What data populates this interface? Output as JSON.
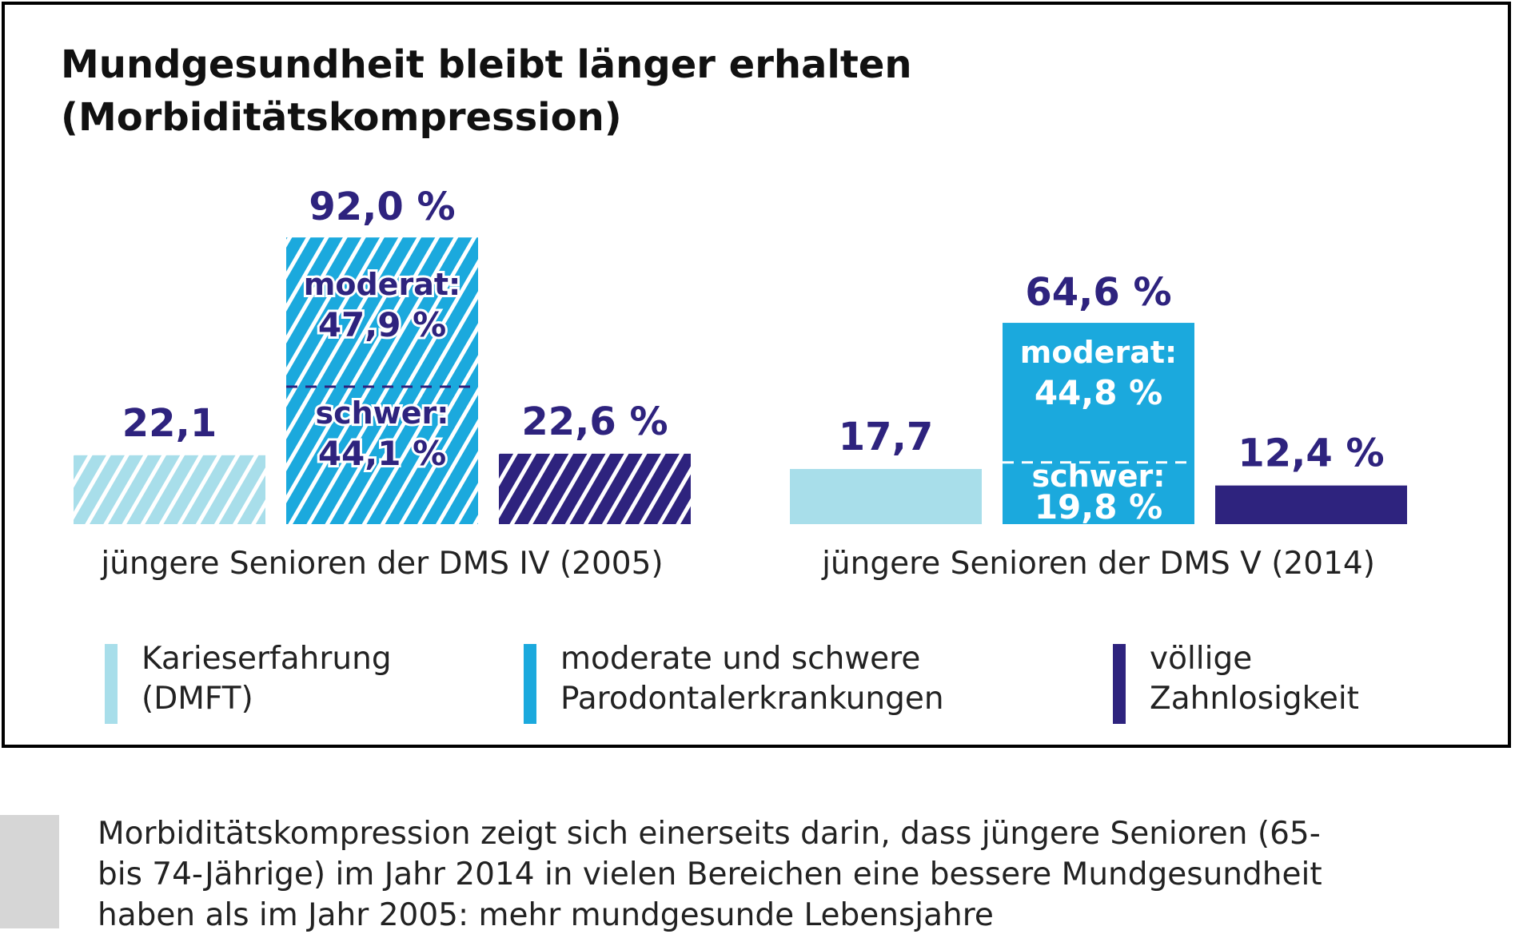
{
  "title": {
    "line1": "Mundgesundheit bleibt länger erhalten",
    "line2": "(Morbiditätskompression)"
  },
  "colors": {
    "caries": "#a8deea",
    "perio": "#1ba9dd",
    "edentulism": "#2e237e",
    "label": "#2e237e",
    "caption_block": "#d6d6d6"
  },
  "chart_data": {
    "type": "bar",
    "title": "Mundgesundheit bleibt länger erhalten (Morbiditätskompression)",
    "categories": [
      "jüngere Senioren der DMS IV (2005)",
      "jüngere Senioren der DMS V (2014)"
    ],
    "series": [
      {
        "name": "Karieserfahrung (DMFT)",
        "values": [
          22.1,
          17.7
        ],
        "labels": [
          "22,1",
          "17,7"
        ],
        "unit": "DMFT",
        "color": "#a8deea"
      },
      {
        "name": "moderate und schwere Parodontalerkrankungen",
        "values": [
          92.0,
          64.6
        ],
        "labels": [
          "92,0 %",
          "64,6 %"
        ],
        "unit": "%",
        "color": "#1ba9dd",
        "segments": {
          "schwer": {
            "prefix": "schwer:",
            "values": [
              44.1,
              19.8
            ],
            "labels": [
              "44,1 %",
              "19,8 %"
            ]
          },
          "moderat": {
            "prefix": "moderat:",
            "values": [
              47.9,
              44.8
            ],
            "labels": [
              "47,9 %",
              "44,8 %"
            ]
          }
        }
      },
      {
        "name": "völlige Zahnlosigkeit",
        "values": [
          22.6,
          12.4
        ],
        "labels": [
          "22,6 %",
          "12,4 %"
        ],
        "unit": "%",
        "color": "#2e237e"
      }
    ],
    "patterned_group": "jüngere Senioren der DMS IV (2005)",
    "legend_position": "bottom",
    "grid": false
  },
  "legend": [
    {
      "line1": "Karieserfahrung",
      "line2": "(DMFT)",
      "color": "#a8deea"
    },
    {
      "line1": "moderate und schwere",
      "line2": "Parodontalerkrankungen",
      "color": "#1ba9dd"
    },
    {
      "line1": "völlige",
      "line2": "Zahnlosigkeit",
      "color": "#2e237e"
    }
  ],
  "caption": {
    "line1": "Morbiditätskompression zeigt sich einerseits darin, dass jüngere Senioren (65-",
    "line2": "bis 74-Jährige) im Jahr 2014 in vielen Bereichen eine bessere Mundgesundheit",
    "line3": "haben als im Jahr 2005: mehr mundgesunde Lebensjahre"
  }
}
